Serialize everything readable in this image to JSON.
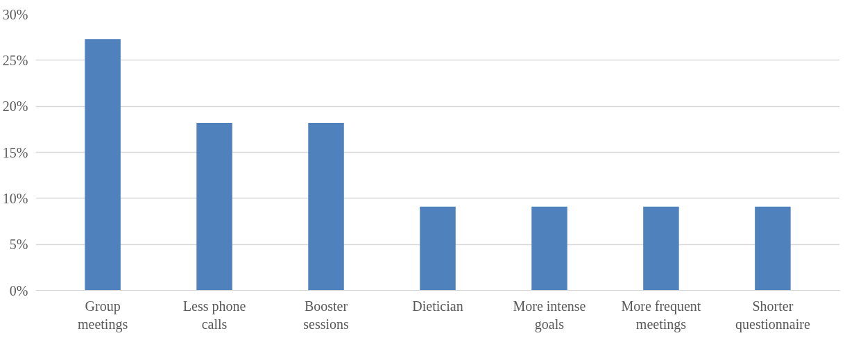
{
  "chart_data": {
    "type": "bar",
    "categories": [
      "Group meetings",
      "Less phone calls",
      "Booster sessions",
      "Dietician",
      "More intense goals",
      "More frequent meetings",
      "Shorter questionnaire"
    ],
    "values": [
      27.3,
      18.2,
      18.2,
      9.1,
      9.1,
      9.1,
      9.1
    ],
    "color": "#4f81bd",
    "ylim": [
      0,
      30
    ],
    "yticks": [
      {
        "value": 0,
        "label": "0%"
      },
      {
        "value": 5,
        "label": "5%"
      },
      {
        "value": 10,
        "label": "10%"
      },
      {
        "value": 15,
        "label": "15%"
      },
      {
        "value": 20,
        "label": "20%"
      },
      {
        "value": 25,
        "label": "25%"
      },
      {
        "value": 30,
        "label": "30%"
      }
    ],
    "grid": "y"
  }
}
